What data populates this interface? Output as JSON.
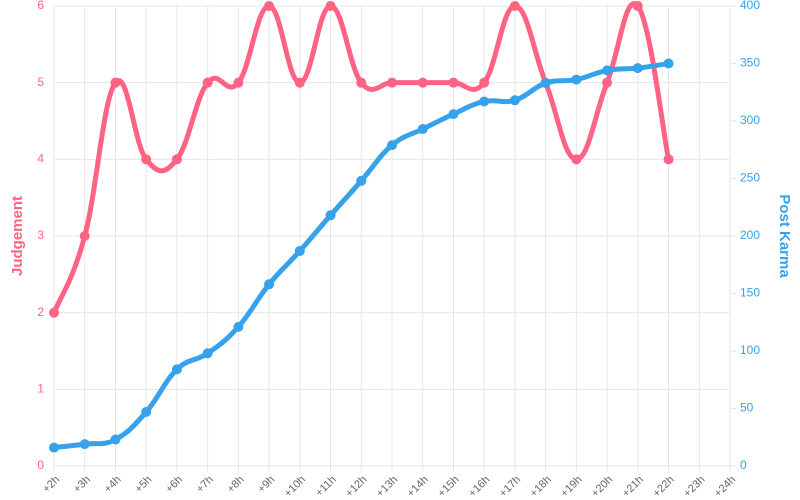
{
  "chart_data": {
    "type": "line",
    "categories": [
      "+2h",
      "+3h",
      "+4h",
      "+5h",
      "+6h",
      "+7h",
      "+8h",
      "+9h",
      "+10h",
      "+11h",
      "+12h",
      "+13h",
      "+14h",
      "+15h",
      "+16h",
      "+17h",
      "+18h",
      "+19h",
      "+20h",
      "+21h",
      "+22h",
      "+23h",
      "+24h"
    ],
    "series": [
      {
        "name": "Judgement",
        "color": "#ff6384",
        "axis": "y",
        "values": [
          2,
          3,
          5,
          4,
          4,
          5,
          5,
          6,
          5,
          6,
          5,
          5,
          5,
          5,
          5,
          6,
          5,
          4,
          5,
          6,
          4,
          null,
          null
        ]
      },
      {
        "name": "Post Karma",
        "color": "#36a2eb",
        "axis": "y2",
        "values": [
          16,
          19,
          23,
          47,
          84,
          98,
          121,
          158,
          187,
          218,
          248,
          279,
          293,
          306,
          317,
          318,
          333,
          336,
          344,
          346,
          350,
          null,
          null
        ]
      }
    ],
    "y_label": "Judgement",
    "y2_label": "Post Karma",
    "ylim": [
      0,
      6
    ],
    "yticks": [
      0,
      1,
      2,
      3,
      4,
      5,
      6
    ],
    "y2lim": [
      0,
      400
    ],
    "y2ticks": [
      0,
      50,
      100,
      150,
      200,
      250,
      300,
      350,
      400
    ],
    "grid": true
  }
}
